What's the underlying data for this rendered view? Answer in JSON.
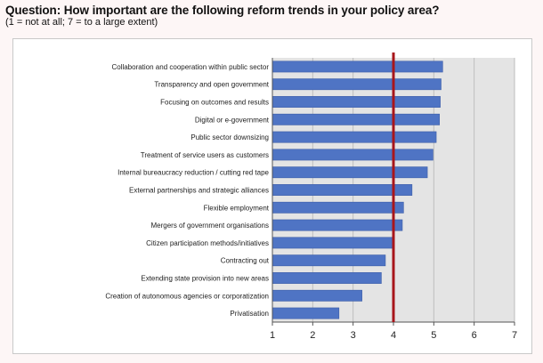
{
  "header": {
    "title": "Question: How important are the following reform trends in your policy area?",
    "subtitle": "(1 = not at all; 7 = to a large extent)"
  },
  "colors": {
    "bar": "#4f74c4",
    "bar_edge": "#3d5ea8",
    "plot_bg": "#e4e4e4",
    "grid": "#bdbdbd",
    "reference_line": "#a8161b"
  },
  "chart_data": {
    "type": "bar",
    "orientation": "horizontal",
    "title": "Question: How important are the following reform trends in your policy area?",
    "subtitle": "(1 = not at all; 7 = to a large extent)",
    "xlabel": "",
    "ylabel": "",
    "xlim": [
      1,
      7
    ],
    "xticks": [
      1,
      2,
      3,
      4,
      5,
      6,
      7
    ],
    "grid": "vertical",
    "legend": "none",
    "reference_line": 4,
    "categories": [
      "Collaboration and cooperation within public sector",
      "Transparency and open government",
      "Focusing on outcomes and results",
      "Digital or e-government",
      "Public sector downsizing",
      "Treatment of service users as customers",
      "Internal bureaucracy reduction / cutting red tape",
      "External partnerships and strategic alliances",
      "Flexible employment",
      "Mergers of government organisations",
      "Citizen participation methods/initiatives",
      "Contracting out",
      "Extending state provision into new areas",
      "Creation of autonomous agencies or corporatization",
      "Privatisation"
    ],
    "values": [
      5.22,
      5.18,
      5.16,
      5.14,
      5.06,
      4.98,
      4.84,
      4.46,
      4.25,
      4.22,
      4.02,
      3.8,
      3.7,
      3.22,
      2.65
    ]
  }
}
